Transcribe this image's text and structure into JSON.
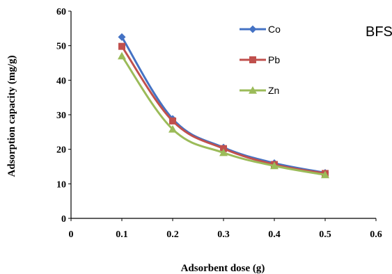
{
  "chart_data": {
    "type": "line",
    "title": "",
    "panel_label": "BFS",
    "xlabel": "Adsorbent dose (g)",
    "ylabel": "Adsorption capacity (mg/g)",
    "xlim": [
      0,
      0.6
    ],
    "ylim": [
      0,
      60
    ],
    "x_ticks": [
      0,
      0.1,
      0.2,
      0.3,
      0.4,
      0.5,
      0.6
    ],
    "x_tick_labels": [
      "0",
      "0.1",
      "0.2",
      "0.3",
      "0.4",
      "0.5",
      "0.6"
    ],
    "y_ticks": [
      0,
      10,
      20,
      30,
      40,
      50,
      60
    ],
    "y_tick_labels": [
      "0",
      "10",
      "20",
      "30",
      "40",
      "50",
      "60"
    ],
    "grid": false,
    "legend_position": "top-right",
    "x": [
      0.1,
      0.2,
      0.3,
      0.4,
      0.5
    ],
    "series": [
      {
        "name": "Co",
        "color": "#4472C4",
        "marker": "diamond",
        "values": [
          52.5,
          28.8,
          20.5,
          16.0,
          13.2
        ]
      },
      {
        "name": "Pb",
        "color": "#C0504D",
        "marker": "square",
        "values": [
          49.8,
          28.2,
          20.2,
          15.6,
          13.0
        ]
      },
      {
        "name": "Zn",
        "color": "#9BBB59",
        "marker": "triangle",
        "values": [
          47.0,
          25.8,
          19.0,
          15.2,
          12.6
        ]
      }
    ]
  }
}
